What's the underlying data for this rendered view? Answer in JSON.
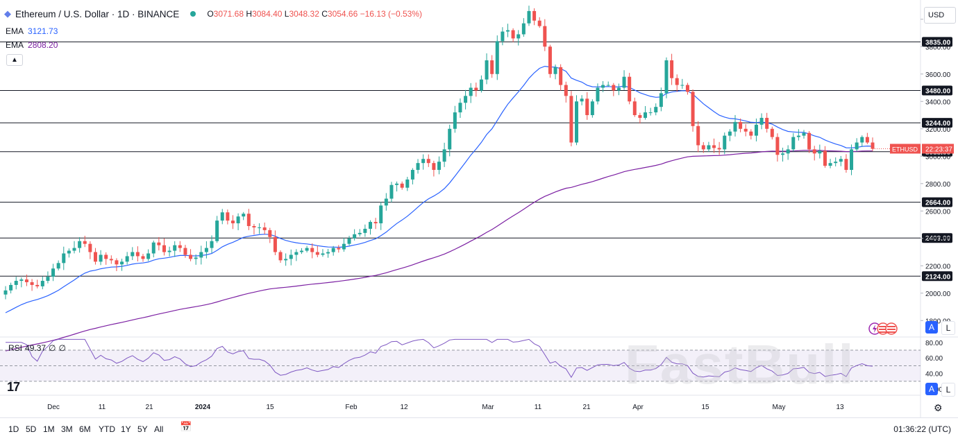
{
  "header": {
    "symbol_title": "Ethereum / U.S. Dollar · 1D · BINANCE",
    "open_label": "O",
    "open": "3071.68",
    "high_label": "H",
    "high": "3084.40",
    "low_label": "L",
    "low": "3048.32",
    "close_label": "C",
    "close": "3054.66",
    "change": "−16.13 (−0.53%)"
  },
  "indicators": {
    "ema1_label": "EMA",
    "ema1_value": "3121.73",
    "ema2_label": "EMA",
    "ema2_value": "2808.20",
    "rsi_label": "RSI",
    "rsi_value": "49.37",
    "rsi_extra1": "∅",
    "rsi_extra2": "∅"
  },
  "toolbar": {
    "currency": "USD",
    "auto_label": "A",
    "log_label": "L",
    "auto_label_rsi": "A",
    "log_label_rsi": "L"
  },
  "bottom_bar": {
    "timeframes": [
      "1D",
      "5D",
      "1M",
      "3M",
      "6M",
      "YTD",
      "1Y",
      "5Y",
      "All"
    ],
    "clock": "01:36:22 (UTC)"
  },
  "watermark": "FastBull",
  "tradingview_logo": "17",
  "colors": {
    "up": "#26a69a",
    "down": "#ef5350",
    "ema_fast": "#2962ff",
    "ema_slow": "#7b1fa2",
    "rsi": "#7e57c2"
  },
  "chart_data": [
    {
      "type": "candlestick",
      "title": "Ethereum / U.S. Dollar · 1D · BINANCE",
      "x_tick_labels": [
        "Dec",
        "11",
        "21",
        "2024",
        "15",
        "Feb",
        "12",
        "Mar",
        "11",
        "21",
        "Apr",
        "15",
        "May",
        "13"
      ],
      "y_tick_labels": [
        "1800.00",
        "2000.00",
        "2200.00",
        "2400.00",
        "2600.00",
        "2800.00",
        "3000.00",
        "3200.00",
        "3400.00",
        "3600.00",
        "3800.00",
        "4000.00"
      ],
      "ylim": [
        1680,
        4100
      ],
      "horizontal_levels": [
        3835,
        3480,
        3244,
        3033,
        2664,
        2403,
        2124
      ],
      "horizontal_level_labels": [
        "3835.00",
        "3480.00",
        "3244.00",
        "3033.00",
        "2664.00",
        "2403.00",
        "2124.00"
      ],
      "current_price_tag": {
        "symbol": "ETHUSD",
        "countdown": "22:23:37",
        "price": 3054.66
      },
      "closes": [
        2020,
        2060,
        2090,
        2100,
        2080,
        2060,
        2050,
        2090,
        2120,
        2180,
        2220,
        2290,
        2310,
        2330,
        2380,
        2360,
        2300,
        2230,
        2280,
        2250,
        2240,
        2210,
        2230,
        2270,
        2300,
        2270,
        2250,
        2290,
        2370,
        2350,
        2300,
        2310,
        2350,
        2330,
        2280,
        2250,
        2260,
        2300,
        2330,
        2380,
        2530,
        2590,
        2530,
        2510,
        2560,
        2580,
        2490,
        2480,
        2480,
        2460,
        2410,
        2300,
        2240,
        2250,
        2280,
        2300,
        2310,
        2330,
        2300,
        2280,
        2290,
        2300,
        2330,
        2320,
        2360,
        2400,
        2430,
        2440,
        2470,
        2520,
        2510,
        2640,
        2690,
        2790,
        2800,
        2770,
        2830,
        2900,
        2950,
        2980,
        2950,
        2900,
        2960,
        3050,
        3200,
        3320,
        3390,
        3440,
        3500,
        3480,
        3560,
        3700,
        3600,
        3840,
        3910,
        3920,
        3860,
        3890,
        3970,
        4060,
        3990,
        3950,
        3800,
        3600,
        3650,
        3520,
        3440,
        3100,
        3400,
        3420,
        3300,
        3400,
        3500,
        3520,
        3520,
        3480,
        3500,
        3580,
        3400,
        3300,
        3280,
        3320,
        3320,
        3360,
        3460,
        3700,
        3570,
        3520,
        3520,
        3470,
        3220,
        3080,
        3050,
        3080,
        3060,
        3050,
        3150,
        3180,
        3250,
        3200,
        3180,
        3150,
        3230,
        3280,
        3200,
        3140,
        3010,
        3020,
        3050,
        3140,
        3150,
        3170,
        3050,
        3020,
        3040,
        2930,
        2950,
        2960,
        2980,
        2900,
        3050,
        3100,
        3140,
        3100,
        3054
      ],
      "ema_fast": {
        "last_value": 3121.73
      },
      "ema_slow": {
        "last_value": 2808.2
      }
    },
    {
      "type": "line",
      "title": "RSI",
      "y_tick_labels": [
        "80.00",
        "60.00",
        "40.00",
        "20.00"
      ],
      "ylim": [
        12,
        87
      ],
      "bands": [
        70,
        50,
        30
      ],
      "last_value": 49.37
    }
  ]
}
